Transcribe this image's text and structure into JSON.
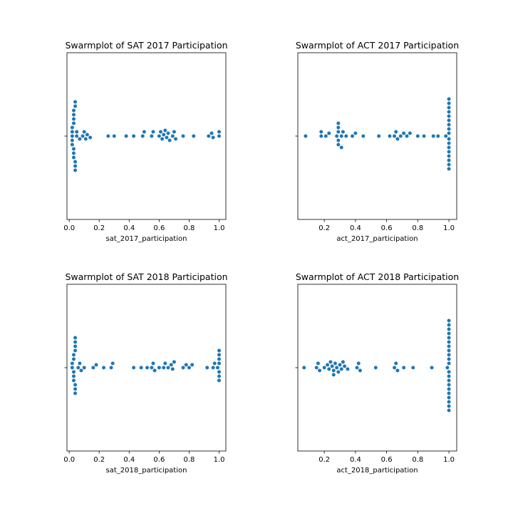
{
  "chart_data": [
    {
      "type": "scatter",
      "subtype": "swarm",
      "title": "Swarmplot of SAT 2017 Participation",
      "xlabel": "sat_2017_participation",
      "xlim": [
        -0.015,
        1.045
      ],
      "xticks": [
        0.0,
        0.2,
        0.4,
        0.6,
        0.8,
        1.0
      ],
      "xtick_labels": [
        "0.0",
        "0.2",
        "0.4",
        "0.6",
        "0.8",
        "1.0"
      ],
      "color": "#1f77b4",
      "values": [
        0.02,
        0.02,
        0.02,
        0.02,
        0.02,
        0.03,
        0.03,
        0.03,
        0.03,
        0.03,
        0.03,
        0.03,
        0.04,
        0.04,
        0.04,
        0.04,
        0.04,
        0.05,
        0.05,
        0.07,
        0.09,
        0.1,
        0.11,
        0.12,
        0.14,
        0.26,
        0.3,
        0.38,
        0.43,
        0.49,
        0.5,
        0.55,
        0.56,
        0.6,
        0.61,
        0.62,
        0.63,
        0.64,
        0.65,
        0.66,
        0.67,
        0.69,
        0.7,
        0.71,
        0.76,
        0.83,
        0.93,
        0.95,
        0.96,
        1.0,
        1.0
      ]
    },
    {
      "type": "scatter",
      "subtype": "swarm",
      "title": "Swarmplot of ACT 2017 Participation",
      "xlabel": "act_2017_participation",
      "xlim": [
        0.03,
        1.05
      ],
      "xticks": [
        0.2,
        0.4,
        0.6,
        0.8,
        1.0
      ],
      "xtick_labels": [
        "0.2",
        "0.4",
        "0.6",
        "0.8",
        "1.0"
      ],
      "color": "#1f77b4",
      "values": [
        0.08,
        0.18,
        0.18,
        0.21,
        0.23,
        0.28,
        0.29,
        0.29,
        0.29,
        0.29,
        0.29,
        0.31,
        0.31,
        0.32,
        0.34,
        0.38,
        0.4,
        0.45,
        0.55,
        0.62,
        0.65,
        0.66,
        0.67,
        0.69,
        0.71,
        0.73,
        0.75,
        0.8,
        0.84,
        0.9,
        0.93,
        0.98,
        1.0,
        1.0,
        1.0,
        1.0,
        1.0,
        1.0,
        1.0,
        1.0,
        1.0,
        1.0,
        1.0,
        1.0,
        1.0,
        1.0,
        1.0,
        1.0,
        1.0
      ]
    },
    {
      "type": "scatter",
      "subtype": "swarm",
      "title": "Swarmplot of SAT 2018 Participation",
      "xlabel": "sat_2018_participation",
      "xlim": [
        -0.015,
        1.045
      ],
      "xticks": [
        0.0,
        0.2,
        0.4,
        0.6,
        0.8,
        1.0
      ],
      "xtick_labels": [
        "0.0",
        "0.2",
        "0.4",
        "0.6",
        "0.8",
        "1.0"
      ],
      "color": "#1f77b4",
      "values": [
        0.02,
        0.02,
        0.03,
        0.03,
        0.03,
        0.03,
        0.03,
        0.04,
        0.04,
        0.04,
        0.04,
        0.04,
        0.04,
        0.04,
        0.06,
        0.07,
        0.08,
        0.1,
        0.16,
        0.18,
        0.23,
        0.28,
        0.29,
        0.43,
        0.48,
        0.52,
        0.55,
        0.56,
        0.57,
        0.6,
        0.63,
        0.64,
        0.66,
        0.68,
        0.69,
        0.7,
        0.76,
        0.78,
        0.8,
        0.82,
        0.92,
        0.96,
        0.97,
        0.99,
        1.0,
        1.0,
        1.0,
        1.0,
        1.0,
        1.0,
        1.0
      ]
    },
    {
      "type": "scatter",
      "subtype": "swarm",
      "title": "Swarmplot of ACT 2018 Participation",
      "xlabel": "act_2018_participation",
      "xlim": [
        0.03,
        1.05
      ],
      "xticks": [
        0.2,
        0.4,
        0.6,
        0.8,
        1.0
      ],
      "xtick_labels": [
        "0.2",
        "0.4",
        "0.6",
        "0.8",
        "1.0"
      ],
      "color": "#1f77b4",
      "values": [
        0.07,
        0.15,
        0.16,
        0.17,
        0.2,
        0.22,
        0.23,
        0.24,
        0.25,
        0.26,
        0.26,
        0.27,
        0.28,
        0.29,
        0.3,
        0.31,
        0.32,
        0.33,
        0.35,
        0.41,
        0.42,
        0.43,
        0.53,
        0.65,
        0.66,
        0.67,
        0.71,
        0.77,
        0.89,
        0.99,
        1.0,
        1.0,
        1.0,
        1.0,
        1.0,
        1.0,
        1.0,
        1.0,
        1.0,
        1.0,
        1.0,
        1.0,
        1.0,
        1.0,
        1.0,
        1.0,
        1.0,
        1.0,
        1.0,
        1.0,
        1.0
      ]
    }
  ]
}
